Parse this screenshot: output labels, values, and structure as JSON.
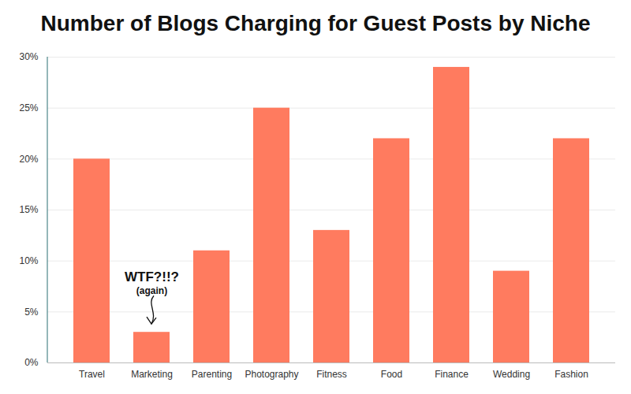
{
  "chart_data": {
    "type": "bar",
    "title": "Number of Blogs Charging for Guest Posts by Niche",
    "categories": [
      "Travel",
      "Marketing",
      "Parenting",
      "Photography",
      "Fitness",
      "Food",
      "Finance",
      "Wedding",
      "Fashion"
    ],
    "values": [
      20,
      3,
      11,
      25,
      13,
      22,
      29,
      9,
      22
    ],
    "color": "#ff7b5f",
    "ylim": [
      0,
      30
    ],
    "yticks": [
      {
        "value": 0,
        "label": "0%"
      },
      {
        "value": 5,
        "label": "5%"
      },
      {
        "value": 10,
        "label": "10%"
      },
      {
        "value": 15,
        "label": "15%"
      },
      {
        "value": 20,
        "label": "20%"
      },
      {
        "value": 25,
        "label": "25%"
      },
      {
        "value": 30,
        "label": "30%"
      }
    ],
    "grid": true,
    "annotations": [
      {
        "category": "Marketing",
        "text": [
          "WTF?!!?",
          "(again)"
        ]
      }
    ]
  }
}
